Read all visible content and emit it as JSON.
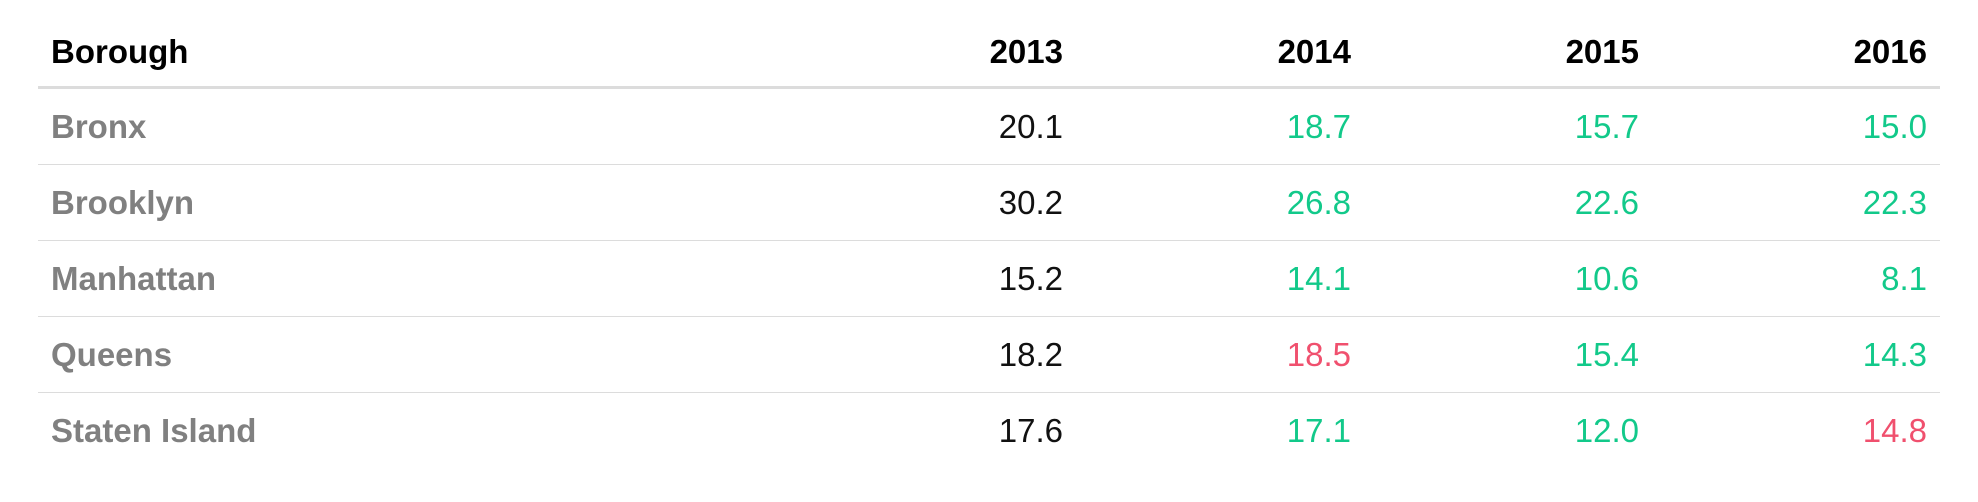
{
  "chart_data": {
    "type": "table",
    "columns": [
      "Borough",
      "2013",
      "2014",
      "2015",
      "2016"
    ],
    "rows": [
      {
        "label": "Bronx",
        "values": [
          "20.1",
          "18.7",
          "15.7",
          "15.0"
        ],
        "status": [
          "base",
          "down",
          "down",
          "down"
        ]
      },
      {
        "label": "Brooklyn",
        "values": [
          "30.2",
          "26.8",
          "22.6",
          "22.3"
        ],
        "status": [
          "base",
          "down",
          "down",
          "down"
        ]
      },
      {
        "label": "Manhattan",
        "values": [
          "15.2",
          "14.1",
          "10.6",
          "8.1"
        ],
        "status": [
          "base",
          "down",
          "down",
          "down"
        ]
      },
      {
        "label": "Queens",
        "values": [
          "18.2",
          "18.5",
          "15.4",
          "14.3"
        ],
        "status": [
          "base",
          "up",
          "down",
          "down"
        ]
      },
      {
        "label": "Staten Island",
        "values": [
          "17.6",
          "17.1",
          "12.0",
          "14.8"
        ],
        "status": [
          "base",
          "down",
          "down",
          "up"
        ]
      }
    ],
    "colors": {
      "decrease": "#12c98a",
      "increase": "#f0506e",
      "baseline": "#111111",
      "row_label": "#808080",
      "header": "#000000"
    }
  }
}
